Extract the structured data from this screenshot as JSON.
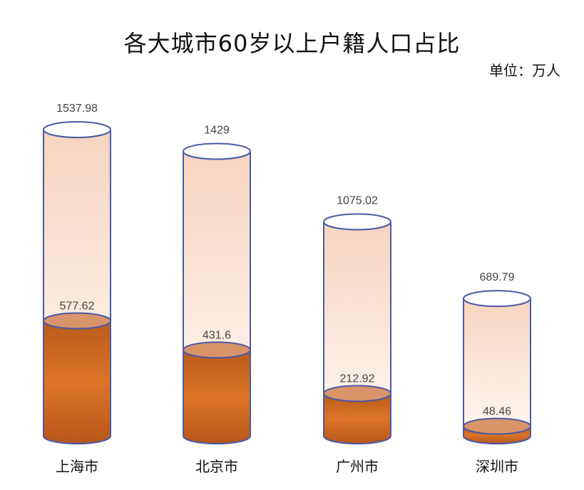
{
  "chart_data": {
    "type": "bar",
    "title": "各大城市60岁以上户籍人口占比",
    "unit_label": "单位：万人",
    "categories": [
      "上海市",
      "北京市",
      "广州市",
      "深圳市"
    ],
    "series": [
      {
        "values": [
          1537.98,
          1429,
          1075.02,
          689.79
        ]
      },
      {
        "values": [
          577.62,
          431.6,
          212.92,
          48.46
        ]
      }
    ],
    "total_labels": [
      "1537.98",
      "1429",
      "1075.02",
      "689.79"
    ],
    "part_labels": [
      "577.62",
      "431.6",
      "212.92",
      "48.46"
    ],
    "ylim": [
      0,
      1537.98
    ],
    "grid": false,
    "legend": "none",
    "colors": {
      "outline": "#4a5aa8",
      "fill_top": "#f7d2bb",
      "fill_bottom": "#fff8f3",
      "part": "#d2691e",
      "part_dark": "#b5541a"
    }
  }
}
